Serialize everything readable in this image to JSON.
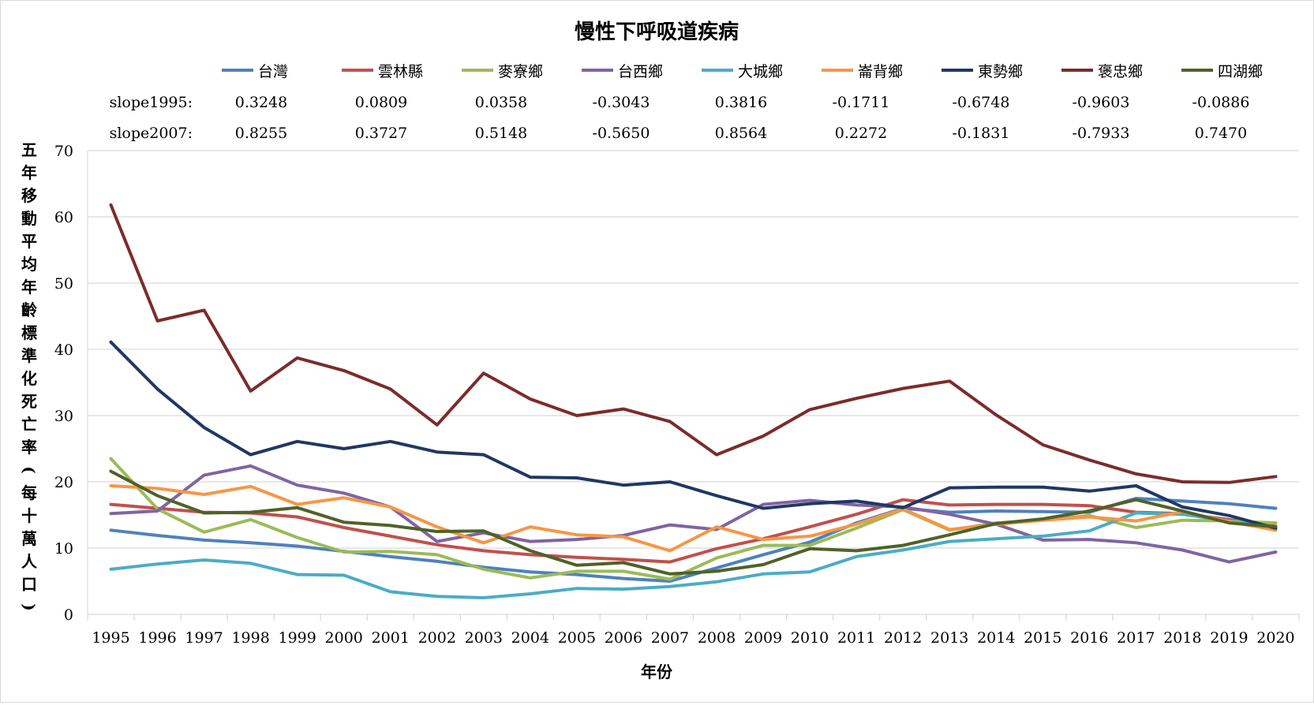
{
  "chart_data": {
    "type": "line",
    "title": "慢性下呼吸道疾病",
    "xlabel": "年份",
    "ylabel": "五年移動平均年齡標準化死亡率(每十萬人口)",
    "ylim": [
      0,
      70
    ],
    "yticks": [
      0,
      10,
      20,
      30,
      40,
      50,
      60,
      70
    ],
    "x": [
      "1995",
      "1996",
      "1997",
      "1998",
      "1999",
      "2000",
      "2001",
      "2002",
      "2003",
      "2004",
      "2005",
      "2006",
      "2007",
      "2008",
      "2009",
      "2010",
      "2011",
      "2012",
      "2013",
      "2014",
      "2015",
      "2016",
      "2017",
      "2018",
      "2019",
      "2020"
    ],
    "grid": true,
    "legend_position": "top",
    "slope_rows": [
      {
        "label": "slope1995:",
        "values": [
          "0.3248",
          "0.0809",
          "0.0358",
          "-0.3043",
          "0.3816",
          "-0.1711",
          "-0.6748",
          "-0.9603",
          "-0.0886"
        ]
      },
      {
        "label": "slope2007:",
        "values": [
          "0.8255",
          "0.3727",
          "0.5148",
          "-0.5650",
          "0.8564",
          "0.2272",
          "-0.1831",
          "-0.7933",
          "0.7470"
        ]
      }
    ],
    "series": [
      {
        "name": "台灣",
        "color": "#4f81bd",
        "values": [
          12.7,
          11.9,
          11.2,
          10.8,
          10.3,
          9.5,
          8.7,
          8.0,
          7.1,
          6.4,
          6.0,
          5.4,
          5.0,
          7.0,
          9.0,
          10.9,
          13.8,
          16.0,
          15.4,
          15.6,
          15.5,
          15.4,
          17.5,
          17.1,
          16.7,
          16.0
        ]
      },
      {
        "name": "雲林縣",
        "color": "#c0504d",
        "values": [
          16.6,
          16.0,
          15.4,
          15.3,
          14.7,
          13.1,
          11.8,
          10.5,
          9.6,
          9.0,
          8.6,
          8.3,
          7.9,
          9.9,
          11.4,
          13.2,
          15.1,
          17.3,
          16.5,
          16.6,
          16.6,
          16.4,
          15.4,
          15.2,
          14.3,
          13.3
        ]
      },
      {
        "name": "麥寮鄉",
        "color": "#9bbb59",
        "values": [
          23.5,
          15.9,
          12.4,
          14.3,
          11.6,
          9.4,
          9.5,
          9.0,
          6.8,
          5.5,
          6.5,
          6.5,
          5.3,
          8.5,
          10.4,
          10.4,
          13.0,
          15.8,
          12.7,
          13.8,
          14.2,
          14.9,
          13.1,
          14.2,
          14.1,
          13.8
        ]
      },
      {
        "name": "台西鄉",
        "color": "#8064a2",
        "values": [
          15.2,
          15.6,
          21.0,
          22.4,
          19.5,
          18.3,
          16.2,
          11.0,
          12.3,
          11.0,
          11.3,
          11.9,
          13.5,
          12.8,
          16.6,
          17.2,
          16.5,
          16.2,
          15.1,
          13.6,
          11.2,
          11.3,
          10.8,
          9.7,
          7.9,
          9.4
        ]
      },
      {
        "name": "大城鄉",
        "color": "#4bacc6",
        "values": [
          6.8,
          7.6,
          8.2,
          7.7,
          6.0,
          5.9,
          3.4,
          2.7,
          2.5,
          3.1,
          3.9,
          3.8,
          4.2,
          4.9,
          6.1,
          6.4,
          8.7,
          9.7,
          11.0,
          11.4,
          11.8,
          12.6,
          15.3,
          15.1,
          14.1,
          13.0
        ]
      },
      {
        "name": "崙背鄉",
        "color": "#f79646",
        "values": [
          19.4,
          19.0,
          18.1,
          19.3,
          16.6,
          17.6,
          16.2,
          13.2,
          10.8,
          13.2,
          12.0,
          11.7,
          9.6,
          13.2,
          11.3,
          11.8,
          13.6,
          15.9,
          12.8,
          13.6,
          14.2,
          14.7,
          14.1,
          15.5,
          14.0,
          12.7
        ]
      },
      {
        "name": "東勢鄉",
        "color": "#1f3864",
        "values": [
          41.1,
          34.0,
          28.2,
          24.1,
          26.1,
          25.0,
          26.1,
          24.5,
          24.1,
          20.7,
          20.6,
          19.5,
          20.0,
          17.9,
          16.0,
          16.7,
          17.1,
          16.1,
          19.1,
          19.2,
          19.2,
          18.6,
          19.4,
          16.2,
          14.9,
          13.0
        ]
      },
      {
        "name": "褒忠鄉",
        "color": "#7b2c2c",
        "values": [
          61.8,
          44.3,
          45.9,
          33.7,
          38.7,
          36.8,
          34.0,
          28.6,
          36.4,
          32.5,
          30.0,
          31.0,
          29.1,
          24.1,
          26.9,
          30.9,
          32.6,
          34.1,
          35.2,
          30.1,
          25.6,
          23.3,
          21.2,
          20.0,
          19.9,
          20.8
        ]
      },
      {
        "name": "四湖鄉",
        "color": "#4f6228",
        "values": [
          21.6,
          17.9,
          15.3,
          15.4,
          16.1,
          13.9,
          13.4,
          12.5,
          12.6,
          9.6,
          7.4,
          7.8,
          6.1,
          6.5,
          7.5,
          9.9,
          9.6,
          10.4,
          12.0,
          13.7,
          14.4,
          15.6,
          17.3,
          15.6,
          13.8,
          13.2
        ]
      }
    ]
  }
}
